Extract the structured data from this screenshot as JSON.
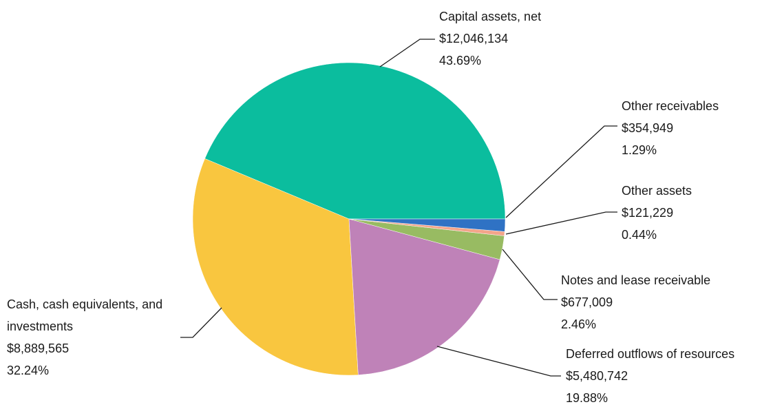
{
  "chart_data": {
    "type": "pie",
    "categories": [
      "Capital assets, net",
      "Cash, cash equivalents, and investments",
      "Deferred outflows of resources",
      "Notes and lease receivable",
      "Other assets",
      "Other receivables"
    ],
    "values": [
      12046134,
      8889565,
      5480742,
      677009,
      121229,
      354949
    ],
    "value_labels": [
      "$12,046,134",
      "$8,889,565",
      "$5,480,742",
      "$677,009",
      "$121,229",
      "$354,949"
    ],
    "percent_labels": [
      "43.69%",
      "32.24%",
      "19.88%",
      "2.46%",
      "0.44%",
      "1.29%"
    ],
    "colors": [
      "#0bbd9e",
      "#f9c63f",
      "#bf82b8",
      "#98bb62",
      "#f3a58a",
      "#2f72c4"
    ]
  }
}
